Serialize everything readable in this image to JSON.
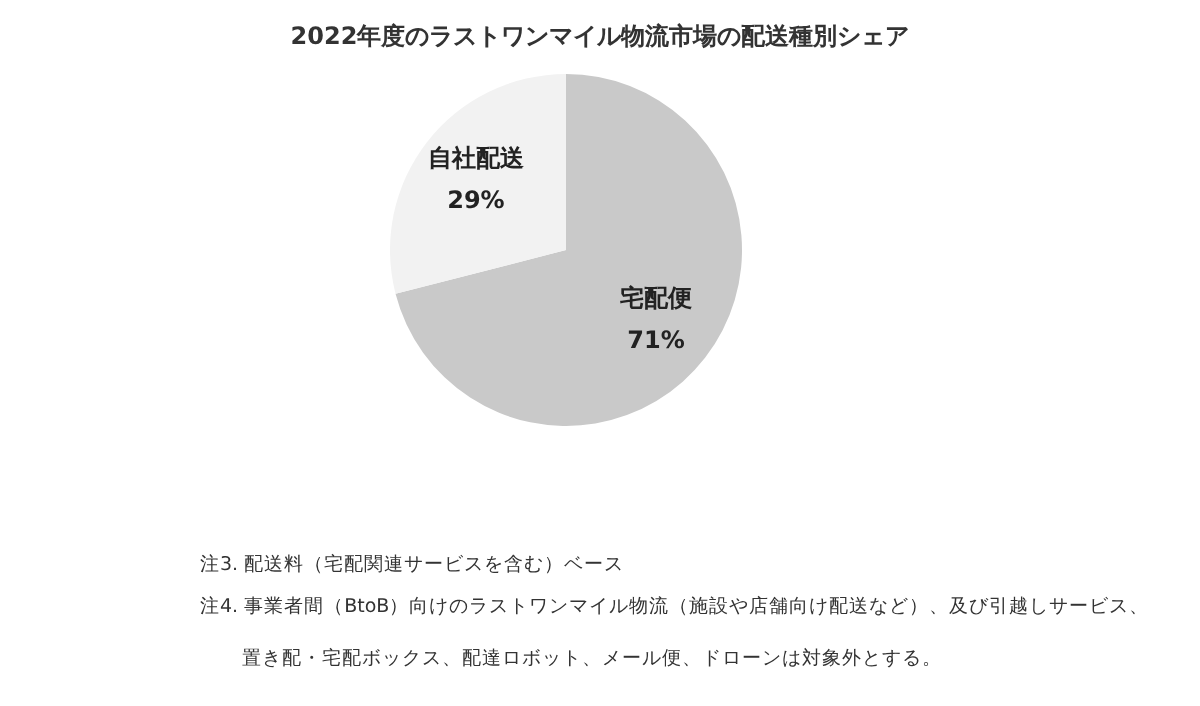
{
  "chart_data": {
    "type": "pie",
    "title": "2022年度のラストワンマイル物流市場の配送種別シェア",
    "categories": [
      "宅配便",
      "自社配送"
    ],
    "values": [
      71,
      29
    ],
    "value_labels": [
      "71%",
      "29%"
    ],
    "colors": [
      "#c9c9c9",
      "#f2f2f2"
    ],
    "annotations": [
      "注3.  配送料（宅配関連サービスを含む）ベース",
      "注4.  事業者間（BtoB）向けのラストワンマイル物流（施設や店舗向け配送など）、及び引越しサービス、",
      "置き配・宅配ボックス、配達ロボット、メール便、ドローンは対象外とする。"
    ]
  }
}
